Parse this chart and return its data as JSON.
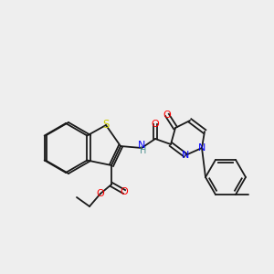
{
  "bg_color": "#eeeeee",
  "bond_color": "#1a1a1a",
  "atom_colors": {
    "O": "#ff0000",
    "N": "#0000ff",
    "S": "#cccc00",
    "H": "#4a9090",
    "C": "#1a1a1a"
  },
  "font_size": 7.5,
  "lw": 1.3
}
